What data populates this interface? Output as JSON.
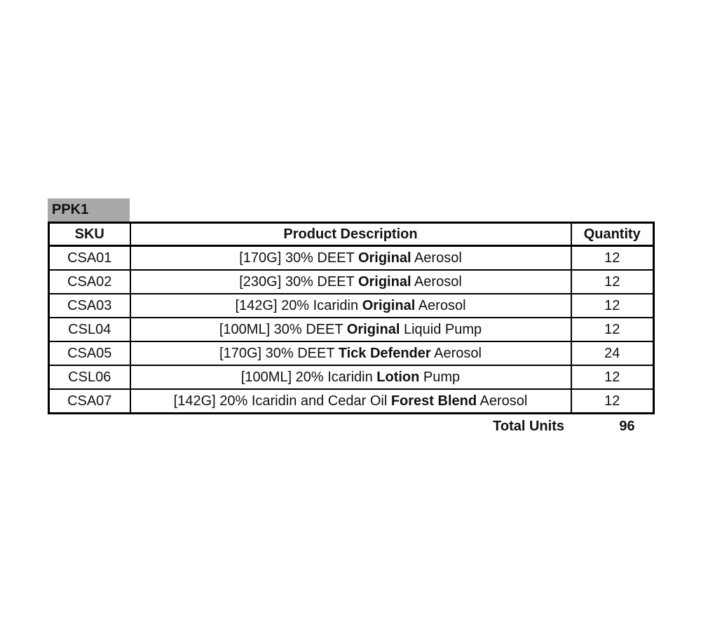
{
  "page": {
    "background": "#ffffff"
  },
  "sheet_label": {
    "text": "PPK1",
    "bg_color": "#aba9a7"
  },
  "table": {
    "headers": {
      "sku": "SKU",
      "description": "Product Description",
      "quantity": "Quantity"
    },
    "rows": [
      {
        "sku": "CSA01",
        "desc_pre": "[170G] 30% DEET ",
        "desc_bold": "Original",
        "desc_post": " Aerosol",
        "qty": "12"
      },
      {
        "sku": "CSA02",
        "desc_pre": "[230G] 30% DEET ",
        "desc_bold": "Original",
        "desc_post": " Aerosol",
        "qty": "12"
      },
      {
        "sku": "CSA03",
        "desc_pre": "[142G] 20% Icaridin ",
        "desc_bold": "Original",
        "desc_post": " Aerosol",
        "qty": "12"
      },
      {
        "sku": "CSL04",
        "desc_pre": "[100ML] 30% DEET ",
        "desc_bold": "Original",
        "desc_post": " Liquid Pump",
        "qty": "12"
      },
      {
        "sku": "CSA05",
        "desc_pre": "[170G] 30% DEET ",
        "desc_bold": "Tick Defender",
        "desc_post": " Aerosol",
        "qty": "24"
      },
      {
        "sku": "CSL06",
        "desc_pre": "[100ML] 20% Icaridin ",
        "desc_bold": "Lotion",
        "desc_post": " Pump",
        "qty": "12"
      },
      {
        "sku": "CSA07",
        "desc_pre": "[142G] 20% Icaridin and Cedar Oil ",
        "desc_bold": "Forest Blend",
        "desc_post": " Aerosol",
        "qty": "12"
      }
    ],
    "total": {
      "label": "Total Units",
      "value": "96"
    }
  }
}
